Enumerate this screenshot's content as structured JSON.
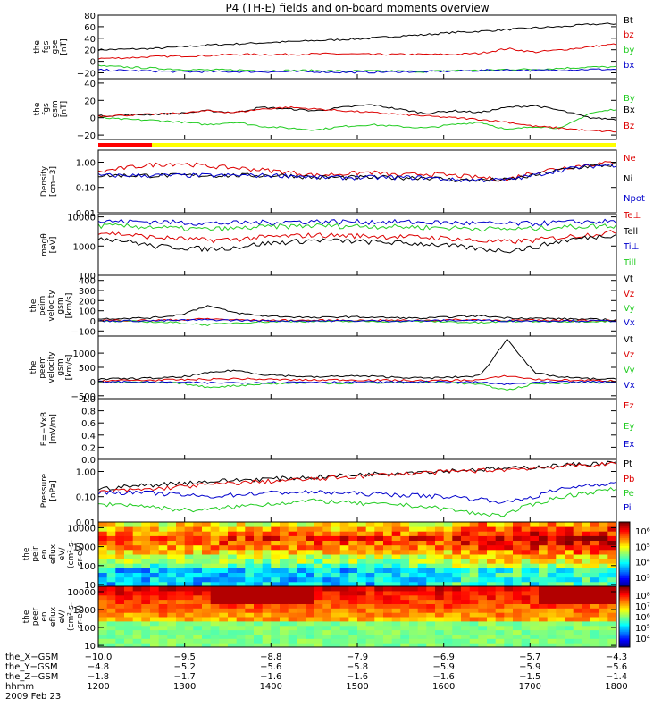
{
  "title": "P4 (TH-E) fields and on-board moments overview",
  "colors": {
    "black": "#000000",
    "red": "#dd0000",
    "green": "#22cc22",
    "blue": "#0000cc",
    "yellow": "#ffff00",
    "redbar": "#ff0000"
  },
  "chart_data": {
    "type": "line",
    "x_range": [
      1200,
      1800
    ],
    "panels": [
      {
        "id": "fgs_gse",
        "ylabel": [
          "the",
          "fgs",
          "gse",
          "[nT]"
        ],
        "ylim": [
          -30,
          80
        ],
        "yticks": [
          "80",
          "60",
          "40",
          "20",
          "0",
          "−20"
        ],
        "yticks_values": [
          80,
          60,
          40,
          20,
          0,
          -20
        ],
        "series": [
          {
            "name": "Bt",
            "color": "#000000",
            "values": [
              20,
              21,
              22,
              25,
              28,
              30,
              32,
              34,
              36,
              38,
              40,
              44,
              46,
              50,
              52,
              55,
              58,
              60,
              64,
              65
            ]
          },
          {
            "name": "bz",
            "color": "#dd0000",
            "values": [
              5,
              6,
              8,
              9,
              10,
              12,
              12,
              12,
              13,
              13,
              12,
              12,
              12,
              12,
              14,
              22,
              16,
              20,
              25,
              30
            ]
          },
          {
            "name": "by",
            "color": "#22cc22",
            "values": [
              -8,
              -10,
              -12,
              -14,
              -15,
              -15,
              -16,
              -16,
              -16,
              -17,
              -17,
              -17,
              -18,
              -16,
              -16,
              -14,
              -14,
              -12,
              -10,
              -10
            ]
          },
          {
            "name": "bx",
            "color": "#0000cc",
            "values": [
              -15,
              -16,
              -17,
              -18,
              -18,
              -18,
              -18,
              -18,
              -18,
              -19,
              -19,
              -18,
              -18,
              -17,
              -16,
              -15,
              -16,
              -15,
              -14,
              -14
            ]
          }
        ]
      },
      {
        "id": "fgs_gsm",
        "ylabel": [
          "the",
          "fgs",
          "gsm",
          "[nT]"
        ],
        "ylim": [
          -25,
          45
        ],
        "yticks": [
          "40",
          "20",
          "0",
          "−20"
        ],
        "yticks_values": [
          40,
          20,
          0,
          -20
        ],
        "series": [
          {
            "name": "By",
            "color": "#22cc22",
            "values": [
              0,
              -2,
              -3,
              -5,
              -8,
              -5,
              -10,
              -12,
              -14,
              -10,
              -8,
              -10,
              -12,
              -8,
              -5,
              -14,
              -10,
              -12,
              5,
              10
            ]
          },
          {
            "name": "Bx",
            "color": "#000000",
            "values": [
              2,
              3,
              4,
              5,
              8,
              6,
              12,
              10,
              8,
              12,
              15,
              10,
              5,
              8,
              6,
              12,
              14,
              8,
              0,
              -2
            ]
          },
          {
            "name": "Bz",
            "color": "#dd0000",
            "values": [
              2,
              3,
              4,
              5,
              8,
              6,
              10,
              12,
              10,
              8,
              6,
              4,
              2,
              0,
              -2,
              -5,
              -10,
              -12,
              -15,
              -16
            ]
          }
        ]
      },
      {
        "id": "density",
        "ylabel": [
          "Density",
          "[cm−3]"
        ],
        "log": true,
        "ylim": [
          0.01,
          3
        ],
        "yticks": [
          "1.00",
          "0.10",
          "0.01"
        ],
        "yticks_values": [
          1.0,
          0.1,
          0.01
        ],
        "series": [
          {
            "name": "Ne",
            "color": "#dd0000",
            "values": [
              0.4,
              0.6,
              0.8,
              0.9,
              0.7,
              0.6,
              0.5,
              0.4,
              0.3,
              0.35,
              0.4,
              0.3,
              0.35,
              0.3,
              0.25,
              0.2,
              0.4,
              0.6,
              0.8,
              1.0
            ]
          },
          {
            "name": "Ni",
            "color": "#000000",
            "values": [
              0.3,
              0.3,
              0.3,
              0.3,
              0.3,
              0.3,
              0.3,
              0.3,
              0.25,
              0.25,
              0.25,
              0.25,
              0.25,
              0.2,
              0.2,
              0.2,
              0.3,
              0.5,
              0.7,
              0.8
            ]
          },
          {
            "name": "Npot",
            "color": "#0000cc",
            "values": [
              0.3,
              0.3,
              0.3,
              0.3,
              0.3,
              0.3,
              0.3,
              0.3,
              0.25,
              0.25,
              0.25,
              0.25,
              0.25,
              0.2,
              0.2,
              0.2,
              0.3,
              0.5,
              0.7,
              0.8
            ]
          }
        ]
      },
      {
        "id": "temp",
        "ylabel": [
          "magθ",
          "[eV]"
        ],
        "log": true,
        "ylim": [
          100,
          12000
        ],
        "yticks": [
          "10000",
          "1000",
          "100"
        ],
        "yticks_values": [
          10000,
          1000,
          100
        ],
        "series": [
          {
            "name": "Te⊥",
            "color": "#dd0000",
            "values": [
              3000,
              2500,
              2000,
              1800,
              1600,
              1700,
              2000,
              2200,
              2400,
              2300,
              2200,
              2100,
              2000,
              1800,
              1500,
              1400,
              1600,
              2000,
              2500,
              3000
            ]
          },
          {
            "name": "Tell",
            "color": "#000000",
            "values": [
              2000,
              1500,
              1000,
              900,
              800,
              900,
              1200,
              1400,
              1600,
              1500,
              1400,
              1300,
              1200,
              1000,
              800,
              700,
              900,
              1500,
              2000,
              2500
            ]
          },
          {
            "name": "Ti⊥",
            "color": "#0000cc",
            "values": [
              7000,
              7000,
              6800,
              6500,
              6000,
              6200,
              6500,
              6800,
              7000,
              6900,
              6800,
              6700,
              6500,
              6300,
              6000,
              5800,
              6000,
              6500,
              6800,
              7000
            ]
          },
          {
            "name": "Till",
            "color": "#22cc22",
            "values": [
              5000,
              4800,
              4500,
              4000,
              3800,
              4000,
              4500,
              4800,
              5000,
              4900,
              4800,
              4600,
              4400,
              4200,
              4000,
              3800,
              4000,
              4500,
              4800,
              5000
            ]
          }
        ]
      },
      {
        "id": "peim_vel",
        "ylabel": [
          "the",
          "peim",
          "velocity",
          "gsm",
          "[km/s]"
        ],
        "ylim": [
          -150,
          450
        ],
        "yticks": [
          "400",
          "300",
          "200",
          "100",
          "0",
          "−100"
        ],
        "yticks_values": [
          400,
          300,
          200,
          100,
          0,
          -100
        ],
        "series": [
          {
            "name": "Vt",
            "color": "#000000",
            "values": [
              20,
              25,
              30,
              60,
              150,
              80,
              50,
              40,
              30,
              40,
              35,
              30,
              25,
              40,
              50,
              30,
              25,
              20,
              15,
              10
            ]
          },
          {
            "name": "Vz",
            "color": "#dd0000",
            "values": [
              5,
              5,
              5,
              10,
              20,
              10,
              5,
              5,
              5,
              5,
              5,
              5,
              5,
              10,
              10,
              5,
              5,
              5,
              5,
              5
            ]
          },
          {
            "name": "Vy",
            "color": "#22cc22",
            "values": [
              -5,
              -5,
              -10,
              -20,
              -40,
              -20,
              -10,
              -5,
              -5,
              -5,
              -5,
              -5,
              -5,
              -10,
              -20,
              -5,
              -5,
              -5,
              -5,
              -5
            ]
          },
          {
            "name": "Vx",
            "color": "#0000cc",
            "values": [
              0,
              0,
              0,
              5,
              10,
              5,
              0,
              0,
              0,
              0,
              0,
              0,
              0,
              5,
              5,
              0,
              0,
              0,
              0,
              0
            ]
          }
        ]
      },
      {
        "id": "peem_vel",
        "ylabel": [
          "the",
          "peem",
          "velocity",
          "gsm",
          "[km/s]"
        ],
        "ylim": [
          -600,
          1600
        ],
        "yticks": [
          "1000",
          "500",
          "0",
          "−500"
        ],
        "yticks_values": [
          1000,
          500,
          0,
          -500
        ],
        "series": [
          {
            "name": "Vt",
            "color": "#000000",
            "values": [
              80,
              100,
              120,
              150,
              300,
              400,
              250,
              200,
              150,
              200,
              180,
              150,
              120,
              150,
              200,
              1500,
              300,
              150,
              100,
              80
            ]
          },
          {
            "name": "Vz",
            "color": "#dd0000",
            "values": [
              30,
              40,
              50,
              60,
              80,
              100,
              80,
              60,
              50,
              60,
              50,
              40,
              30,
              40,
              60,
              200,
              80,
              50,
              40,
              30
            ]
          },
          {
            "name": "Vy",
            "color": "#22cc22",
            "values": [
              -20,
              -30,
              -40,
              -60,
              -200,
              -150,
              -80,
              -60,
              -50,
              -60,
              -50,
              -40,
              -30,
              -40,
              -100,
              -300,
              -80,
              -50,
              -40,
              -30
            ]
          },
          {
            "name": "Vx",
            "color": "#0000cc",
            "values": [
              -10,
              -10,
              -20,
              -30,
              -50,
              -40,
              -30,
              -20,
              -20,
              -20,
              -20,
              -20,
              -10,
              -20,
              -30,
              -100,
              -30,
              -20,
              -10,
              -10
            ]
          }
        ]
      },
      {
        "id": "efield",
        "ylabel": [
          "E=−VxB",
          "[mV/m]"
        ],
        "ylim": [
          0,
          1
        ],
        "yticks": [
          "1.0",
          "0.8",
          "0.6",
          "0.4",
          "0.2",
          "0.0"
        ],
        "yticks_values": [
          1.0,
          0.8,
          0.6,
          0.4,
          0.2,
          0.0
        ],
        "series": [
          {
            "name": "Ez",
            "color": "#dd0000",
            "values": []
          },
          {
            "name": "Ey",
            "color": "#22cc22",
            "values": []
          },
          {
            "name": "Ex",
            "color": "#0000cc",
            "values": []
          }
        ]
      },
      {
        "id": "pressure",
        "ylabel": [
          "Pressure",
          "[nPa]"
        ],
        "log": true,
        "ylim": [
          0.01,
          3
        ],
        "yticks": [
          "1.00",
          "0.10",
          "0.01"
        ],
        "yticks_values": [
          1.0,
          0.1,
          0.01
        ],
        "series": [
          {
            "name": "Pt",
            "color": "#000000",
            "values": [
              0.2,
              0.25,
              0.3,
              0.35,
              0.4,
              0.45,
              0.5,
              0.55,
              0.6,
              0.7,
              0.8,
              0.9,
              1.0,
              1.1,
              1.2,
              1.3,
              1.5,
              1.8,
              2.0,
              2.2
            ]
          },
          {
            "name": "Pb",
            "color": "#dd0000",
            "values": [
              0.15,
              0.18,
              0.2,
              0.25,
              0.3,
              0.35,
              0.4,
              0.45,
              0.5,
              0.6,
              0.7,
              0.8,
              0.9,
              1.0,
              1.1,
              1.2,
              1.4,
              1.6,
              1.8,
              2.0
            ]
          },
          {
            "name": "Pe",
            "color": "#22cc22",
            "values": [
              0.05,
              0.05,
              0.04,
              0.03,
              0.03,
              0.04,
              0.05,
              0.06,
              0.07,
              0.06,
              0.05,
              0.05,
              0.04,
              0.03,
              0.02,
              0.02,
              0.05,
              0.1,
              0.15,
              0.2
            ]
          },
          {
            "name": "Pi",
            "color": "#0000cc",
            "values": [
              0.15,
              0.15,
              0.14,
              0.12,
              0.1,
              0.12,
              0.14,
              0.15,
              0.15,
              0.14,
              0.13,
              0.12,
              0.11,
              0.1,
              0.08,
              0.06,
              0.1,
              0.2,
              0.3,
              0.35
            ]
          }
        ]
      },
      {
        "id": "peir_eflux",
        "type": "heatmap",
        "ylabel": [
          "the",
          "peir",
          "en",
          "eflux",
          "eV/",
          "(cm²-s-",
          "sr-eV)"
        ],
        "log": true,
        "ylim": [
          8,
          20000
        ],
        "yticks": [
          "10000",
          "1000",
          "100",
          "10"
        ],
        "yticks_values": [
          10000,
          1000,
          100,
          10
        ],
        "colorbar": {
          "ticks": [
            "10⁶",
            "10⁵",
            "10⁴",
            "10³"
          ],
          "range_exp": [
            2.5,
            6.5
          ]
        }
      },
      {
        "id": "peer_eflux",
        "type": "heatmap",
        "ylabel": [
          "the",
          "peer",
          "en",
          "eflux",
          "eV/",
          "(cm²-s-",
          "sr-eV)"
        ],
        "log": true,
        "ylim": [
          8,
          20000
        ],
        "yticks": [
          "10000",
          "1000",
          "100",
          "10"
        ],
        "yticks_values": [
          10000,
          1000,
          100,
          10
        ],
        "colorbar": {
          "ticks": [
            "10⁸",
            "10⁷",
            "10⁶",
            "10⁵",
            "10⁴"
          ],
          "range_exp": [
            3.5,
            8.2
          ]
        }
      }
    ],
    "x_axis": {
      "rows": [
        {
          "label": "the_X−GSM",
          "values": [
            "−10.0",
            "−9.5",
            "−8.8",
            "−7.9",
            "−6.9",
            "−5.7",
            "−4.3"
          ]
        },
        {
          "label": "the_Y−GSM",
          "values": [
            "−4.8",
            "−5.2",
            "−5.6",
            "−5.8",
            "−5.9",
            "−5.9",
            "−5.6"
          ]
        },
        {
          "label": "the_Z−GSM",
          "values": [
            "−1.8",
            "−1.7",
            "−1.6",
            "−1.6",
            "−1.6",
            "−1.5",
            "−1.4"
          ]
        },
        {
          "label": "hhmm",
          "values": [
            "1200",
            "1300",
            "1400",
            "1500",
            "1600",
            "1700",
            "1800"
          ]
        }
      ],
      "date": "2009 Feb 23"
    }
  }
}
